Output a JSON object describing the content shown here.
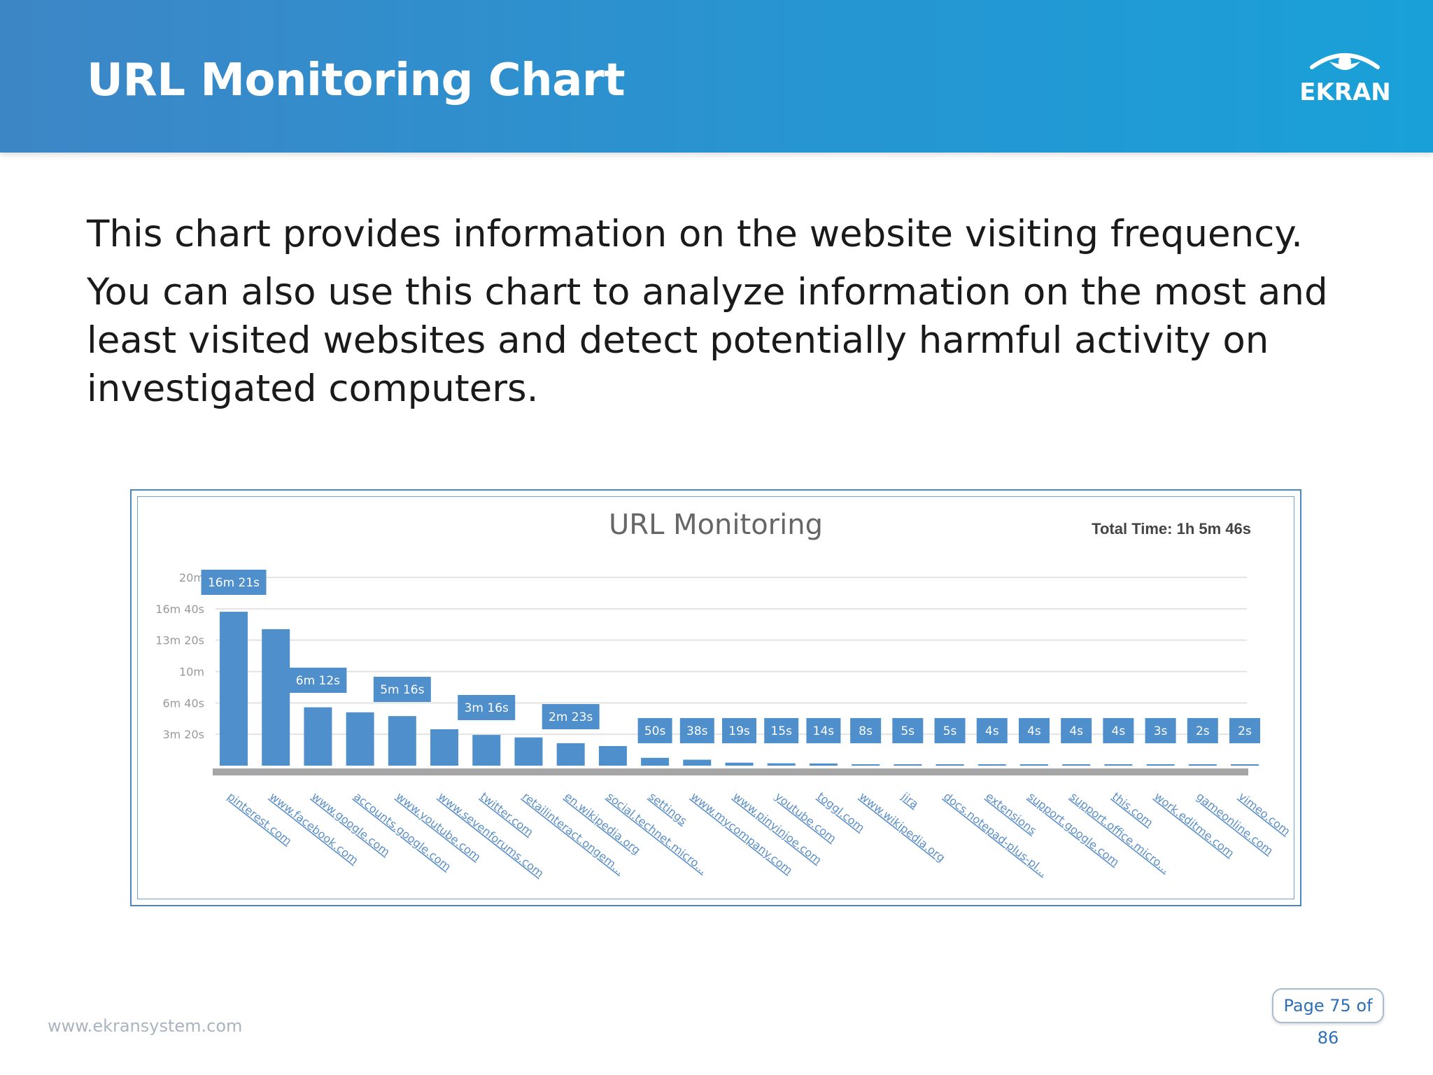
{
  "header": {
    "title": "URL Monitoring Chart",
    "logo_text": "EKRAN"
  },
  "body": {
    "paragraph1": "This chart provides information on the website visiting frequency.",
    "paragraph2_line1": "You can also use this chart to analyze information on the most and",
    "paragraph2_line2": "least visited websites and detect potentially harmful activity on",
    "paragraph2_line3": "investigated computers."
  },
  "footer": {
    "url": "www.ekransystem.com",
    "page_label": "Page 75 of 86"
  },
  "colors": {
    "header_start": "#3d86c6",
    "header_end": "#1aa0d8",
    "bar": "#4f8fcb",
    "label_box": "#4f8fcb",
    "axis_base": "#a6a6a6"
  },
  "chart_data": {
    "type": "bar",
    "title": "URL Monitoring",
    "total_time": "Total Time: 1h 5m 46s",
    "y_ticks": [
      "20m",
      "16m 40s",
      "13m 20s",
      "10m",
      "6m 40s",
      "3m 20s"
    ],
    "y_tick_values": [
      1200,
      1000,
      800,
      600,
      400,
      200
    ],
    "ylim": [
      0,
      1200
    ],
    "grid": true,
    "categories": [
      "pinterest.com",
      "www.facebook.com",
      "www.google.com",
      "accounts.google.com",
      "www.youtube.com",
      "www.sevenforums.com",
      "twitter.com",
      "retailinteract.ongem...",
      "en.wikipedia.org",
      "social.technet.micro...",
      "settings",
      "www.mycompany.com",
      "www.pinyinjoe.com",
      "youtube.com",
      "toggl.com",
      "www.wikipedia.org",
      "jira",
      "docs.notepad-plus-pl...",
      "extensions",
      "support.google.com",
      "support.office.micro...",
      "this.com",
      "work.editme.com",
      "gameonline.com",
      "vimeo.com"
    ],
    "values": [
      981,
      870,
      372,
      340,
      316,
      232,
      196,
      180,
      143,
      125,
      50,
      38,
      19,
      15,
      14,
      8,
      5,
      5,
      4,
      4,
      4,
      4,
      3,
      2,
      2
    ],
    "data_labels": [
      "16m 21s",
      "",
      "6m 12s",
      "",
      "5m 16s",
      "",
      "3m 16s",
      "",
      "2m 23s",
      "",
      "50s",
      "38s",
      "19s",
      "15s",
      "14s",
      "8s",
      "5s",
      "5s",
      "4s",
      "4s",
      "4s",
      "4s",
      "3s",
      "2s",
      "2s"
    ]
  }
}
